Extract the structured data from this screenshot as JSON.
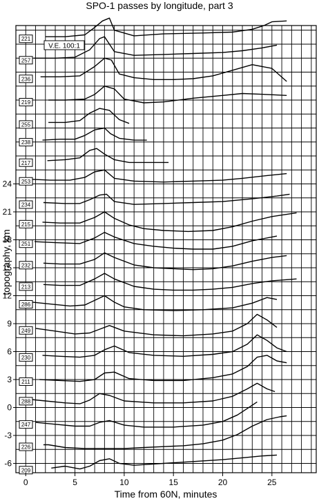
{
  "chart_data": {
    "type": "line",
    "title": "SPO-1 passes by longitude, part 3",
    "xlabel": "Time from 60N, minutes",
    "ylabel": "topography, km",
    "annotation": "V.E. 100:1",
    "xlim": [
      -1,
      29.5
    ],
    "ylim": [
      -7,
      41
    ],
    "x_ticks": [
      0,
      5,
      10,
      15,
      20,
      25
    ],
    "y_ticks": [
      -6,
      -3,
      0,
      3,
      6,
      9,
      12,
      15,
      18,
      21,
      24
    ],
    "grid": true,
    "series": [
      {
        "name": "221",
        "x": [
          2,
          4,
          6,
          7,
          7.8,
          8.5,
          9,
          11,
          14,
          18,
          21,
          23,
          24.2,
          25,
          26.5
        ],
        "y": [
          39.8,
          39.8,
          40.0,
          40.8,
          41.5,
          41.8,
          40.5,
          39.9,
          40.1,
          40.2,
          40.3,
          40.6,
          41.0,
          41.4,
          41.5
        ]
      },
      {
        "name": "257",
        "x": [
          0.8,
          3,
          5,
          6.5,
          7.5,
          8,
          9,
          11,
          14,
          17,
          20,
          22,
          24,
          25.5
        ],
        "y": [
          37.5,
          37.5,
          37.6,
          38.4,
          39.6,
          39.8,
          38.2,
          37.8,
          37.9,
          38.0,
          38.1,
          38.3,
          38.6,
          38.9
        ]
      },
      {
        "name": "236",
        "x": [
          1.5,
          3.5,
          5.5,
          7,
          8,
          8.7,
          9.5,
          11,
          13,
          15,
          17,
          19,
          21,
          23,
          25,
          26.5
        ],
        "y": [
          35.5,
          35.5,
          35.6,
          36.6,
          37.5,
          37.3,
          35.8,
          35.4,
          35.2,
          35.2,
          35.3,
          35.6,
          36.2,
          36.8,
          36.4,
          35.0
        ]
      },
      {
        "name": "219",
        "x": [
          2.3,
          4,
          6,
          7,
          8,
          9,
          10,
          12,
          14,
          17,
          20,
          22,
          24.5,
          26.5
        ],
        "y": [
          33.0,
          33.0,
          33.1,
          33.6,
          34.5,
          34.2,
          33.1,
          32.7,
          32.8,
          33.2,
          33.5,
          33.7,
          33.6,
          33.5
        ]
      },
      {
        "name": "255",
        "x": [
          2.3,
          4,
          5.5,
          6.5,
          7.5,
          8.5,
          9.5,
          10.5
        ],
        "y": [
          30.6,
          30.6,
          30.8,
          31.6,
          32.1,
          31.9,
          30.9,
          30.5
        ]
      },
      {
        "name": "238",
        "x": [
          1.7,
          3.5,
          5,
          6,
          7,
          8,
          8.6,
          9.5,
          11,
          12.3
        ],
        "y": [
          28.7,
          28.8,
          28.8,
          29.2,
          29.8,
          30.0,
          29.4,
          28.9,
          28.7,
          28.7
        ]
      },
      {
        "name": "217",
        "x": [
          2.2,
          4,
          5.5,
          6.5,
          7.2,
          8,
          9,
          10.5,
          12.5,
          14.5
        ],
        "y": [
          26.5,
          26.6,
          26.8,
          27.6,
          27.8,
          27.2,
          26.6,
          26.3,
          26.3,
          26.3
        ]
      },
      {
        "name": "253",
        "x": [
          0.5,
          2.5,
          4.5,
          6,
          7,
          8,
          9,
          11,
          14,
          17,
          20,
          22,
          24.5,
          26.5
        ],
        "y": [
          24.5,
          24.4,
          24.4,
          24.7,
          25.3,
          25.5,
          24.6,
          24.3,
          24.2,
          24.3,
          24.4,
          24.6,
          24.9,
          25.1
        ]
      },
      {
        "name": "234",
        "x": [
          1.8,
          4,
          5.5,
          6.5,
          7.5,
          8.2,
          9,
          11,
          14,
          17,
          20,
          23,
          25.5,
          26.8
        ],
        "y": [
          22.0,
          21.9,
          21.9,
          22.3,
          22.8,
          22.9,
          22.1,
          21.8,
          21.9,
          22.0,
          22.1,
          22.4,
          22.7,
          22.9
        ]
      },
      {
        "name": "215",
        "x": [
          1.7,
          3.5,
          5.5,
          7,
          8,
          9,
          10.5,
          12,
          14,
          16.5,
          19,
          21,
          23,
          25,
          27.5
        ],
        "y": [
          19.9,
          19.8,
          19.8,
          20.4,
          21.0,
          20.3,
          19.6,
          19.2,
          19.0,
          18.9,
          19.0,
          19.4,
          20.0,
          20.5,
          20.9
        ]
      },
      {
        "name": "251",
        "x": [
          0.9,
          3,
          5.5,
          7,
          8,
          9,
          11,
          13,
          15,
          17,
          19,
          21,
          23,
          25.5
        ],
        "y": [
          17.8,
          17.7,
          17.6,
          18.2,
          18.8,
          18.3,
          17.6,
          17.3,
          17.1,
          17.0,
          17.0,
          17.3,
          17.9,
          18.4
        ]
      },
      {
        "name": "232",
        "x": [
          1.8,
          3.5,
          5.5,
          7,
          8,
          9,
          11,
          13,
          15,
          17,
          19,
          21,
          23,
          25,
          26.5
        ],
        "y": [
          15.5,
          15.4,
          15.4,
          15.9,
          16.6,
          16.1,
          15.3,
          15.0,
          14.9,
          14.8,
          14.9,
          15.2,
          15.7,
          16.1,
          16.3
        ]
      },
      {
        "name": "213",
        "x": [
          1.8,
          3.5,
          5.5,
          7,
          8,
          9,
          11,
          13,
          15,
          17,
          19,
          21,
          23,
          25,
          27.5
        ],
        "y": [
          13.2,
          13.1,
          13.1,
          13.8,
          14.4,
          13.8,
          13.0,
          12.7,
          12.6,
          12.6,
          12.7,
          12.9,
          13.3,
          13.6,
          13.8
        ]
      },
      {
        "name": "286",
        "x": [
          0.7,
          2.5,
          4.5,
          6,
          7,
          8,
          9,
          10,
          12,
          15,
          18,
          21,
          23,
          24.5,
          25.5
        ],
        "y": [
          11.3,
          11.1,
          10.9,
          11.0,
          11.5,
          12.0,
          11.3,
          10.8,
          10.5,
          10.4,
          10.5,
          10.7,
          11.2,
          11.8,
          11.6
        ]
      },
      {
        "name": "249",
        "x": [
          1,
          3,
          5,
          6.5,
          7.5,
          8.5,
          10,
          13,
          16,
          19,
          21,
          22.5,
          23.5,
          24.5,
          25.5
        ],
        "y": [
          8.5,
          8.2,
          7.9,
          8.0,
          8.4,
          8.8,
          8.2,
          7.8,
          7.7,
          7.9,
          8.2,
          9.0,
          10.0,
          9.4,
          8.6
        ]
      },
      {
        "name": "230",
        "x": [
          1.7,
          3.5,
          5.5,
          7,
          8,
          9,
          10.5,
          13,
          16,
          19,
          21,
          22.5,
          23.5,
          24.5,
          25.5,
          26.5
        ],
        "y": [
          5.6,
          5.5,
          5.4,
          5.6,
          6.2,
          6.6,
          5.9,
          5.6,
          5.5,
          5.7,
          6.0,
          6.8,
          7.8,
          7.2,
          6.4,
          6.0
        ]
      },
      {
        "name": "211",
        "x": [
          1.4,
          3.5,
          5.5,
          7,
          8,
          9,
          10.5,
          13,
          16,
          19,
          21,
          22.5,
          23.5,
          24.5,
          25.5,
          26.5
        ],
        "y": [
          3.0,
          2.9,
          2.8,
          3.0,
          3.7,
          3.8,
          3.1,
          2.9,
          2.9,
          3.2,
          3.6,
          4.4,
          5.4,
          5.6,
          5.0,
          4.8
        ]
      },
      {
        "name": "288",
        "x": [
          0.2,
          2,
          4,
          5.5,
          6.5,
          7.5,
          8.5,
          10,
          13,
          16,
          19,
          21,
          22.5,
          23.5,
          24.5,
          25.3
        ],
        "y": [
          0.9,
          0.7,
          0.5,
          0.4,
          0.8,
          1.5,
          1.3,
          0.7,
          0.5,
          0.5,
          0.7,
          1.2,
          2.0,
          2.6,
          2.0,
          1.7
        ]
      },
      {
        "name": "247",
        "x": [
          1,
          3,
          5,
          6.5,
          7.5,
          8.5,
          10,
          12,
          15,
          18,
          20,
          21.5,
          22.5,
          23.5
        ],
        "y": [
          -1.6,
          -1.8,
          -2.0,
          -2.0,
          -1.6,
          -1.4,
          -1.9,
          -2.1,
          -2.1,
          -1.9,
          -1.5,
          -0.8,
          -0.1,
          0.6
        ]
      },
      {
        "name": "226",
        "x": [
          1.8,
          2.3,
          4,
          6,
          8,
          10,
          12,
          14,
          16,
          18,
          20,
          21.5,
          23,
          24.5,
          25.8,
          26.5
        ],
        "y": [
          -4.0,
          -4.0,
          -4.3,
          -4.4,
          -4.4,
          -4.4,
          -4.3,
          -4.2,
          -4.1,
          -3.9,
          -3.5,
          -2.9,
          -2.0,
          -1.3,
          -1.0,
          -0.9
        ]
      },
      {
        "name": "209",
        "x": [
          2.6,
          4,
          5.5,
          6.5,
          7.5,
          8.5,
          9.5,
          11,
          14,
          17,
          20,
          22,
          24,
          25.5
        ],
        "y": [
          -6.5,
          -6.3,
          -6.6,
          -6.3,
          -5.7,
          -5.5,
          -6.0,
          -6.2,
          -6.0,
          -5.8,
          -5.6,
          -5.4,
          -5.2,
          -5.1
        ]
      }
    ]
  }
}
